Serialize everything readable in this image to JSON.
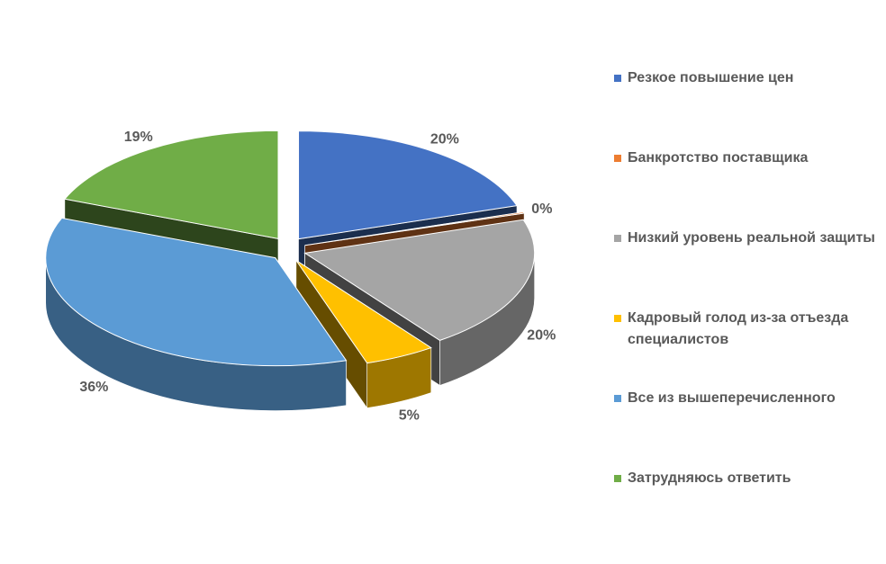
{
  "chart_data": {
    "type": "pie",
    "style": "3d-exploded",
    "categories": [
      "Резкое повышение цен",
      "Банкротство поставщика",
      "Низкий уровень реальной защиты",
      "Кадровый голод из-за отъезда специалистов",
      "Все из вышеперечисленного",
      "Затрудняюсь ответить"
    ],
    "values": [
      20,
      0,
      20,
      5,
      36,
      19
    ],
    "data_labels": [
      "20%",
      "0%",
      "20%",
      "5%",
      "36%",
      "19%"
    ],
    "colors": [
      "#4472C4",
      "#ED7D31",
      "#A5A5A5",
      "#FFC000",
      "#5B9BD5",
      "#70AD47"
    ],
    "legend_position": "right"
  }
}
